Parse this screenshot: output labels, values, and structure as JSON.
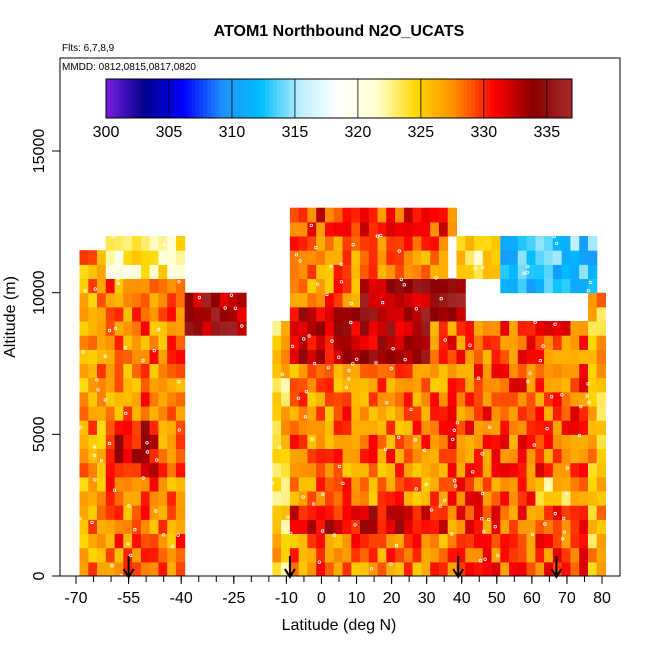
{
  "chart_data": {
    "type": "heatmap",
    "title": "ATOM1 Northbound N2O_UCATS",
    "flights_note": "Flts: 6,7,8,9",
    "dates_note": "MMDD: 0812,0815,0817,0820",
    "xlabel": "Latitude (deg N)",
    "ylabel": "Altitude (m)",
    "xlim": [
      -70,
      80
    ],
    "ylim": [
      0,
      17500
    ],
    "x_ticks": [
      -70,
      -55,
      -40,
      -25,
      -10,
      0,
      10,
      20,
      30,
      40,
      50,
      60,
      70,
      80
    ],
    "x_tick_labels": [
      "-70",
      "-55",
      "-40",
      "-25",
      "-10",
      "0",
      "10",
      "20",
      "30",
      "40",
      "50",
      "60",
      "70",
      "80"
    ],
    "y_ticks": [
      0,
      5000,
      10000,
      15000
    ],
    "y_tick_labels": [
      "0",
      "5000",
      "10000",
      "15000"
    ],
    "colorbar": {
      "min": 300,
      "max": 337,
      "ticks": [
        300,
        305,
        310,
        315,
        320,
        325,
        330,
        335
      ],
      "tick_labels": [
        "300",
        "305",
        "310",
        "315",
        "320",
        "325",
        "330",
        "335"
      ],
      "colors": [
        "#7a1fe0",
        "#00008b",
        "#0000ff",
        "#1e90ff",
        "#00bfff",
        "#bfefff",
        "#ffffff",
        "#ffffcc",
        "#ffd700",
        "#ff8c00",
        "#ff0000",
        "#8b0000",
        "#a52a2a"
      ]
    },
    "regions": [
      {
        "name": "southern-column",
        "lat": [
          -69,
          -62
        ],
        "alt": [
          0,
          11500
        ],
        "value": 327
      },
      {
        "name": "south-mid",
        "lat": [
          -62,
          -40
        ],
        "alt": [
          0,
          11000
        ],
        "value": 328
      },
      {
        "name": "south-upper-layer",
        "lat": [
          -62,
          -40
        ],
        "alt": [
          10500,
          12000
        ],
        "value": 323
      },
      {
        "name": "southern-hot-spot",
        "lat": [
          -58,
          -47
        ],
        "alt": [
          3500,
          5500
        ],
        "value": 332
      },
      {
        "name": "upper-hot-spot-south",
        "lat": [
          -40,
          -22
        ],
        "alt": [
          8500,
          10000
        ],
        "value": 334
      },
      {
        "name": "low-band-minus-12",
        "lat": [
          -14,
          -10
        ],
        "alt": [
          0,
          9000
        ],
        "value": 325
      },
      {
        "name": "tropical-core",
        "lat": [
          -10,
          35
        ],
        "alt": [
          0,
          12500
        ],
        "value": 328
      },
      {
        "name": "tropical-upper-hot",
        "lat": [
          -8,
          30
        ],
        "alt": [
          7500,
          9500
        ],
        "value": 333
      },
      {
        "name": "mid-upper-hot",
        "lat": [
          10,
          42
        ],
        "alt": [
          9000,
          10500
        ],
        "value": 334
      },
      {
        "name": "low-red-band",
        "lat": [
          -10,
          40
        ],
        "alt": [
          1500,
          2500
        ],
        "value": 332
      },
      {
        "name": "top-cap-red",
        "lat": [
          -10,
          38
        ],
        "alt": [
          12000,
          12900
        ],
        "value": 330
      },
      {
        "name": "northern-mid",
        "lat": [
          35,
          75
        ],
        "alt": [
          0,
          9000
        ],
        "value": 329
      },
      {
        "name": "northern-upper-yellow",
        "lat": [
          38,
          58
        ],
        "alt": [
          10500,
          12000
        ],
        "value": 324
      },
      {
        "name": "northern-blue-cap",
        "lat": [
          50,
          78
        ],
        "alt": [
          10000,
          12000
        ],
        "value": 313
      },
      {
        "name": "northern-edge",
        "lat": [
          75,
          80
        ],
        "alt": [
          0,
          10000
        ],
        "value": 326
      },
      {
        "name": "northern-low-yellow",
        "lat": [
          60,
          72
        ],
        "alt": [
          2500,
          3500
        ],
        "value": 324
      }
    ],
    "profile_markers_lat": [
      -55,
      -9,
      39,
      67
    ]
  }
}
